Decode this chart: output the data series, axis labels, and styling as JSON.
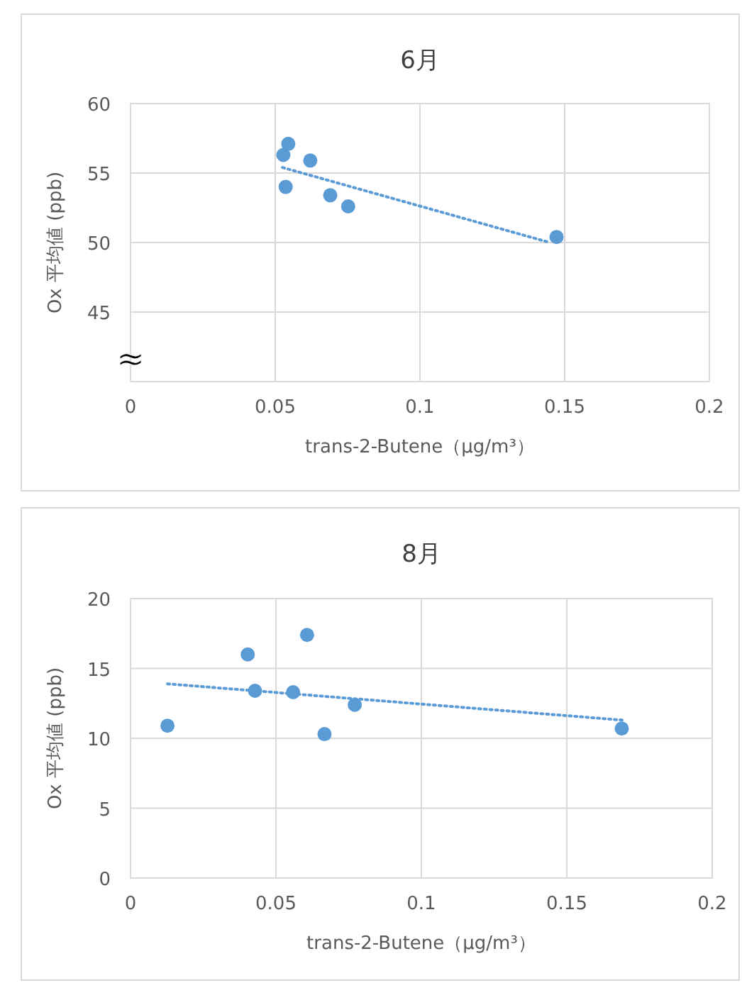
{
  "chart_data": [
    {
      "type": "scatter",
      "title": "6月",
      "xlabel": "trans-2-Butene（μg/m³）",
      "ylabel": "Ox 平均値 (ppb)",
      "xlim": [
        0,
        0.2
      ],
      "xticks": [
        0,
        0.05,
        0.1,
        0.15,
        0.2
      ],
      "ylim": [
        40,
        60
      ],
      "yticks": [
        45,
        50,
        55,
        60
      ],
      "grid": true,
      "annotations": [
        "≈"
      ],
      "series": [
        {
          "color": "#5b9bd5",
          "marker": "circle",
          "x": [
            0.0528,
            0.0545,
            0.0536,
            0.0621,
            0.069,
            0.0752,
            0.1472
          ],
          "values": [
            56.3,
            57.1,
            54.0,
            55.9,
            53.4,
            52.6,
            50.4
          ]
        },
        {
          "type": "line",
          "color": "#5b9bd5",
          "line_style": "dotted",
          "marker": "none",
          "x": [
            0.0525,
            0.1449
          ],
          "values": [
            55.4,
            50.0
          ]
        }
      ]
    },
    {
      "type": "scatter",
      "title": "8月",
      "xlabel": "trans-2-Butene（μg/m³）",
      "ylabel": "Ox 平均値 (ppb)",
      "xlim": [
        0,
        0.2
      ],
      "xticks": [
        0,
        0.05,
        0.1,
        0.15,
        0.2
      ],
      "ylim": [
        0,
        20
      ],
      "yticks": [
        0,
        5,
        10,
        15,
        20
      ],
      "grid": true,
      "series": [
        {
          "color": "#5b9bd5",
          "marker": "circle",
          "x": [
            0.0127,
            0.0403,
            0.0428,
            0.0607,
            0.0559,
            0.0667,
            0.0771,
            0.1689
          ],
          "values": [
            10.9,
            16.0,
            13.4,
            17.4,
            13.3,
            10.3,
            12.4,
            10.7
          ]
        },
        {
          "type": "line",
          "color": "#5b9bd5",
          "line_style": "dotted",
          "marker": "none",
          "x": [
            0.0127,
            0.1693
          ],
          "values": [
            13.9,
            11.3
          ]
        }
      ]
    }
  ]
}
